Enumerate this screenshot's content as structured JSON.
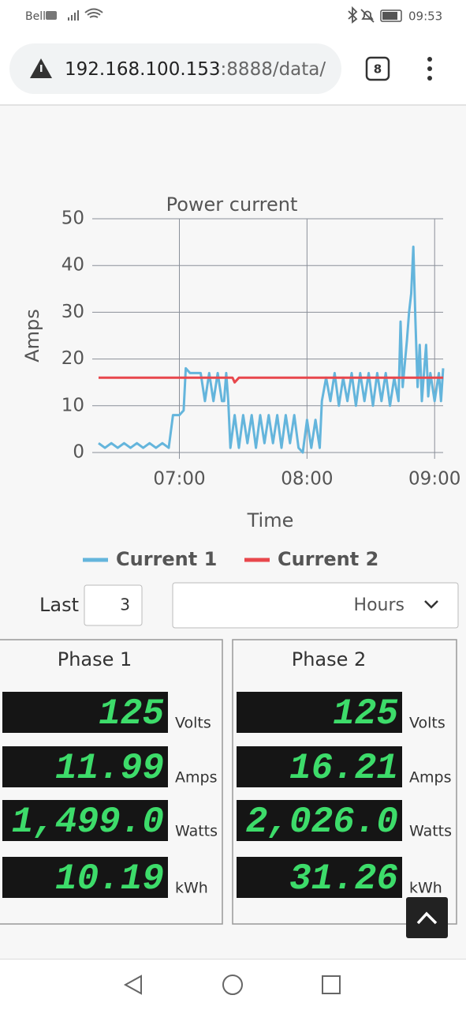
{
  "status_bar": {
    "carrier": "Bell",
    "time": "09:53"
  },
  "browser": {
    "url_host": "192.168.100.153",
    "url_path": ":8888/data/",
    "tab_count": "8"
  },
  "chart_data": {
    "type": "line",
    "title": "Power current",
    "x_label": "Time",
    "y_label": "Amps",
    "xlim": [
      "06:22",
      "09:04"
    ],
    "xticks": [
      "07:00",
      "08:00",
      "09:00"
    ],
    "ylim": [
      0,
      50
    ],
    "yticks": [
      0,
      10,
      20,
      30,
      40,
      50
    ],
    "grid": true,
    "legend": "bottom",
    "series": [
      {
        "name": "Current 1",
        "color": "#64b5dc",
        "x": [
          "06:22",
          "06:25",
          "06:28",
          "06:31",
          "06:34",
          "06:37",
          "06:40",
          "06:43",
          "06:46",
          "06:49",
          "06:52",
          "06:55",
          "06:57",
          "07:00",
          "07:02",
          "07:03",
          "07:05",
          "07:08",
          "07:10",
          "07:12",
          "07:14",
          "07:16",
          "07:18",
          "07:20",
          "07:21",
          "07:22",
          "07:23",
          "07:24",
          "07:26",
          "07:28",
          "07:30",
          "07:32",
          "07:34",
          "07:36",
          "07:38",
          "07:40",
          "07:42",
          "07:44",
          "07:46",
          "07:48",
          "07:50",
          "07:52",
          "07:54",
          "07:56",
          "07:58",
          "08:00",
          "08:02",
          "08:04",
          "08:06",
          "08:07",
          "08:09",
          "08:11",
          "08:13",
          "08:15",
          "08:17",
          "08:19",
          "08:21",
          "08:23",
          "08:25",
          "08:27",
          "08:29",
          "08:31",
          "08:33",
          "08:35",
          "08:37",
          "08:39",
          "08:41",
          "08:43",
          "08:44",
          "08:45",
          "08:47",
          "08:48",
          "08:49",
          "08:50",
          "08:51",
          "08:52",
          "08:53",
          "08:54",
          "08:56",
          "08:57",
          "08:58",
          "09:00",
          "09:02",
          "09:03",
          "09:04"
        ],
        "values": [
          2,
          1,
          2,
          1,
          2,
          1,
          2,
          1,
          2,
          1,
          2,
          1,
          8,
          8,
          9,
          18,
          17,
          17,
          17,
          11,
          17,
          11,
          17,
          11,
          11,
          17,
          11,
          1,
          8,
          1,
          8,
          2,
          8,
          1,
          8,
          2,
          8,
          2,
          8,
          1,
          8,
          2,
          8,
          1,
          0,
          7,
          1,
          7,
          1,
          11,
          16,
          11,
          17,
          10,
          16,
          11,
          17,
          10,
          17,
          11,
          17,
          10,
          17,
          11,
          17,
          10,
          16,
          11,
          28,
          14,
          24,
          30,
          34,
          44,
          28,
          14,
          23,
          11,
          23,
          12,
          17,
          11,
          17,
          11,
          18
        ]
      },
      {
        "name": "Current 2",
        "color": "#e8474c",
        "x": [
          "06:22",
          "07:25",
          "07:26",
          "07:28",
          "09:04"
        ],
        "values": [
          16,
          16,
          15,
          16,
          16
        ]
      }
    ]
  },
  "controls": {
    "last_label": "Last",
    "last_value": "3",
    "unit": "Hours"
  },
  "phases": [
    {
      "title": "Phase 1",
      "readings": [
        {
          "value": "125",
          "unit": "Volts"
        },
        {
          "value": "11.99",
          "unit": "Amps"
        },
        {
          "value": "1,499.0",
          "unit": "Watts"
        },
        {
          "value": "10.19",
          "unit": "kWh"
        }
      ]
    },
    {
      "title": "Phase 2",
      "readings": [
        {
          "value": "125",
          "unit": "Volts"
        },
        {
          "value": "16.21",
          "unit": "Amps"
        },
        {
          "value": "2,026.0",
          "unit": "Watts"
        },
        {
          "value": "31.26",
          "unit": "kWh"
        }
      ]
    }
  ]
}
